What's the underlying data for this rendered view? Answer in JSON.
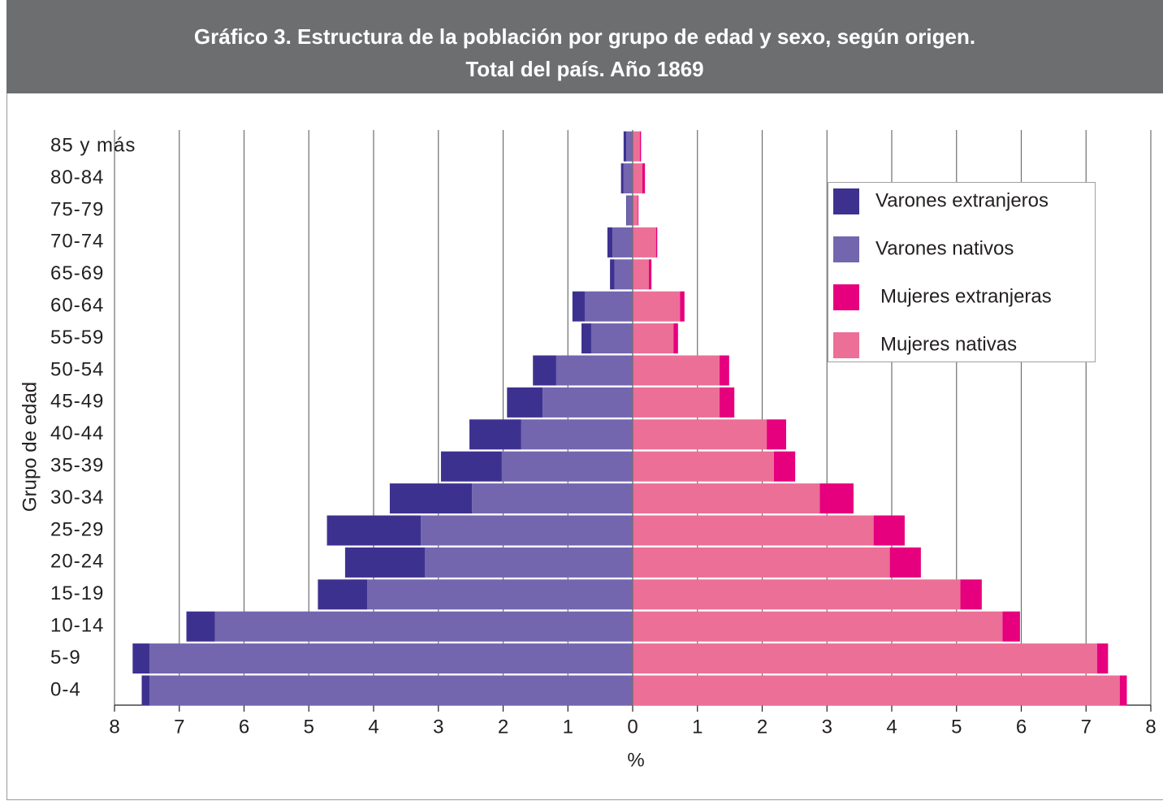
{
  "chart_data": {
    "type": "pyramid",
    "title": "Gráfico 3. Estructura de la población por grupo de edad y sexo, según origen.",
    "subtitle": "Total del país. Año 1869",
    "x_label": "%",
    "y_label": "Grupo de edad",
    "categories": [
      "0-4",
      "5-9",
      "10-14",
      "15-19",
      "20-24",
      "25-29",
      "30-34",
      "35-39",
      "40-44",
      "45-49",
      "50-54",
      "55-59",
      "60-64",
      "65-69",
      "70-74",
      "75-79",
      "80-84",
      "85 y más"
    ],
    "series": [
      {
        "name": "Varones extranjeros",
        "color": "#3d3190",
        "values": [
          -0.12,
          -0.26,
          -0.44,
          -0.76,
          -1.23,
          -1.45,
          -1.27,
          -0.94,
          -0.8,
          -0.55,
          -0.36,
          -0.15,
          -0.19,
          -0.07,
          -0.08,
          -0.01,
          -0.04,
          -0.04
        ]
      },
      {
        "name": "Varones nativos",
        "color": "#7366ae",
        "values": [
          -7.46,
          -7.46,
          -6.45,
          -4.1,
          -3.21,
          -3.27,
          -2.48,
          -2.02,
          -1.72,
          -1.39,
          -1.18,
          -0.64,
          -0.74,
          -0.28,
          -0.31,
          -0.09,
          -0.14,
          -0.1
        ]
      },
      {
        "name": "Mujeres extranjeras",
        "color": "#e6007e",
        "values": [
          0.11,
          0.17,
          0.27,
          0.33,
          0.48,
          0.48,
          0.52,
          0.33,
          0.3,
          0.23,
          0.15,
          0.07,
          0.07,
          0.04,
          0.02,
          0.01,
          0.04,
          0.02
        ]
      },
      {
        "name": "Mujeres nativas",
        "color": "#ec6f97",
        "values": [
          7.52,
          7.17,
          5.71,
          5.06,
          3.97,
          3.72,
          2.89,
          2.18,
          2.07,
          1.34,
          1.34,
          0.63,
          0.73,
          0.25,
          0.36,
          0.08,
          0.15,
          0.11
        ]
      }
    ],
    "xlim": [
      -8,
      8
    ],
    "xticks": [
      {
        "value": -8,
        "label": "8"
      },
      {
        "value": -7,
        "label": "7"
      },
      {
        "value": -6,
        "label": "6"
      },
      {
        "value": -5,
        "label": "5"
      },
      {
        "value": -4,
        "label": "4"
      },
      {
        "value": -3,
        "label": "3"
      },
      {
        "value": -2,
        "label": "2"
      },
      {
        "value": -1,
        "label": "1"
      },
      0,
      1,
      2,
      3,
      4,
      5,
      6,
      7,
      8
    ],
    "grid": true,
    "legend": "upper right"
  }
}
